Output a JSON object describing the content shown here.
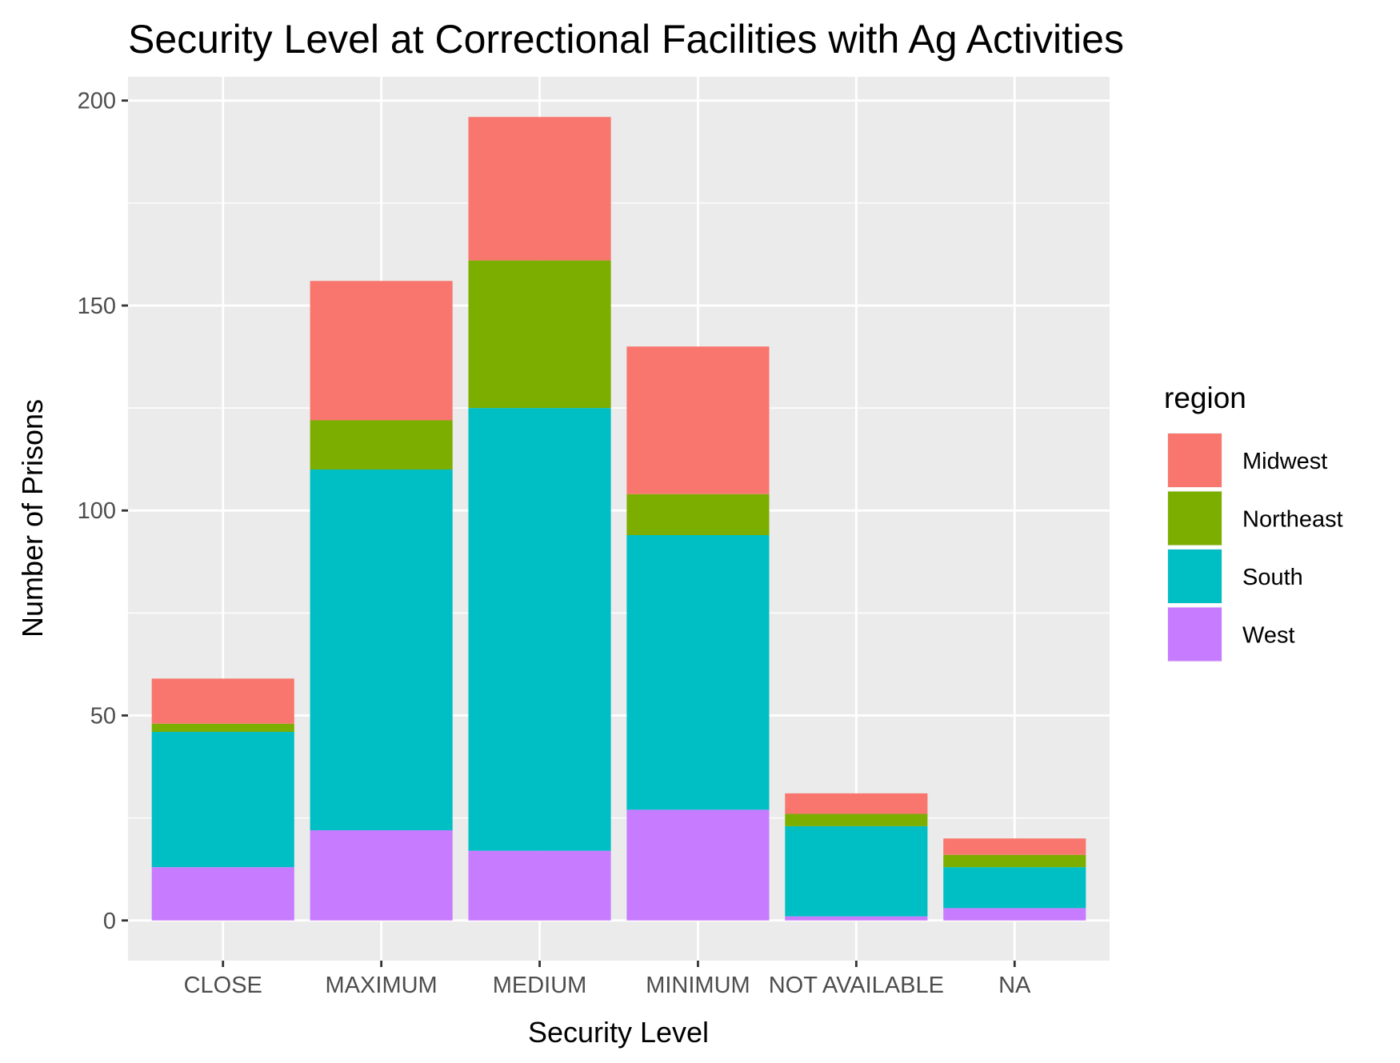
{
  "chart_data": {
    "type": "bar",
    "stacked": true,
    "title": "Security Level at Correctional Facilities with Ag Activities",
    "xlabel": "Security Level",
    "ylabel": "Number of Prisons",
    "categories": [
      "CLOSE",
      "MAXIMUM",
      "MEDIUM",
      "MINIMUM",
      "NOT AVAILABLE",
      "NA"
    ],
    "ylim": [
      -9.8,
      205.8
    ],
    "yticks": [
      0,
      50,
      100,
      150,
      200
    ],
    "grid": true,
    "legend": {
      "title": "region",
      "position": "right",
      "entries": [
        "Midwest",
        "Northeast",
        "South",
        "West"
      ]
    },
    "series": [
      {
        "name": "West",
        "color": "#C77CFF",
        "values": [
          13,
          22,
          17,
          27,
          1,
          3
        ]
      },
      {
        "name": "South",
        "color": "#00BFC4",
        "values": [
          33,
          88,
          108,
          67,
          22,
          10
        ]
      },
      {
        "name": "Northeast",
        "color": "#7CAE00",
        "values": [
          2,
          12,
          36,
          10,
          3,
          3
        ]
      },
      {
        "name": "Midwest",
        "color": "#F8766D",
        "values": [
          11,
          34,
          35,
          36,
          5,
          4
        ]
      }
    ]
  }
}
